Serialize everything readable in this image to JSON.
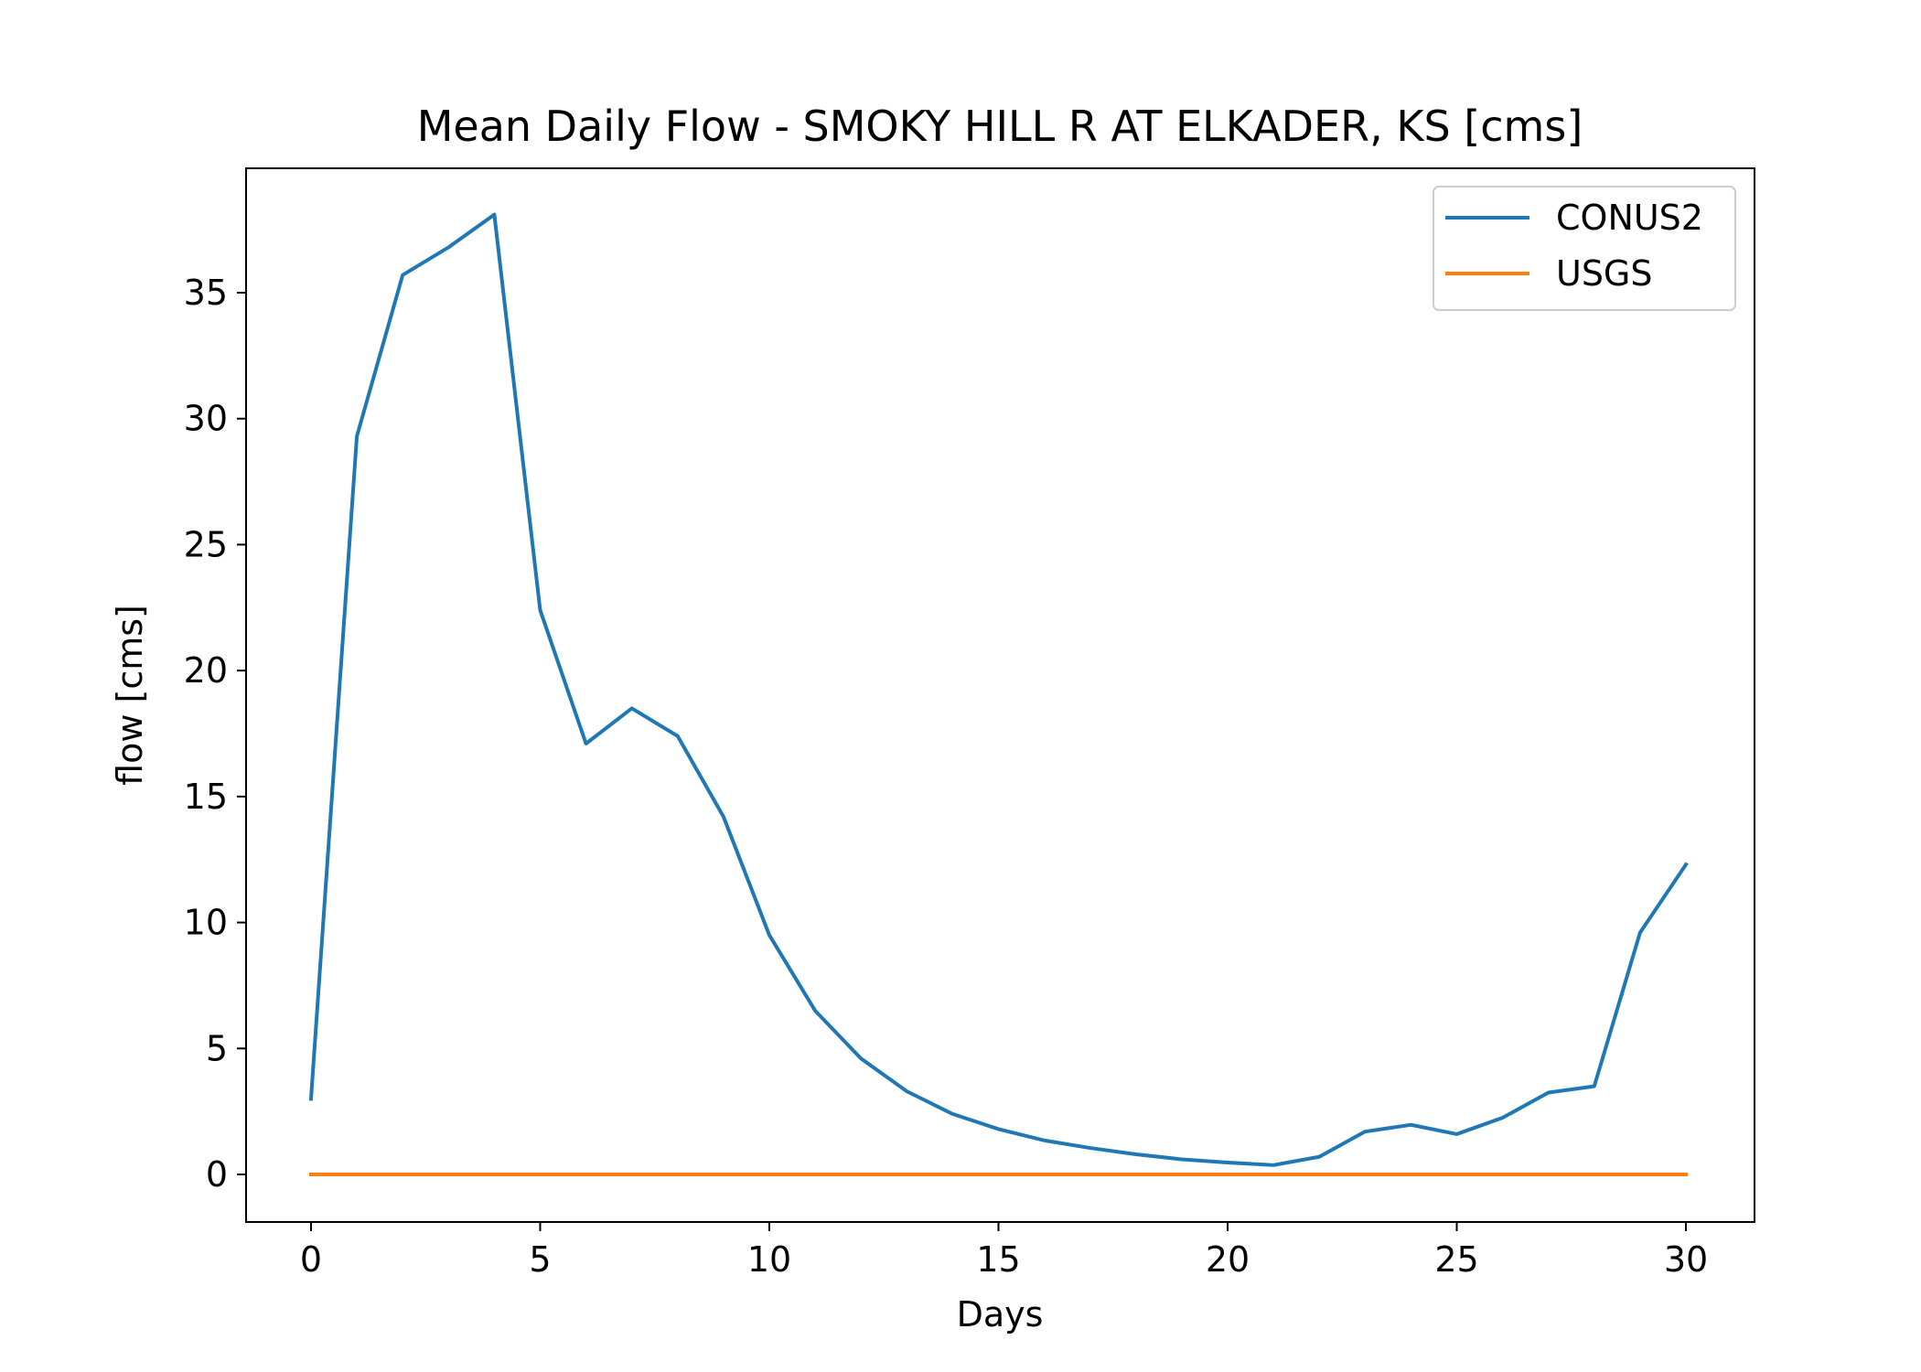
{
  "chart_data": {
    "type": "line",
    "title": "Mean Daily Flow - SMOKY HILL R AT ELKADER, KS [cms]",
    "xlabel": "Days",
    "ylabel": "flow [cms]",
    "xlim": [
      -1.5,
      31.5
    ],
    "ylim": [
      -1.9,
      39.9
    ],
    "xticks": [
      0,
      5,
      10,
      15,
      20,
      25,
      30
    ],
    "yticks": [
      0,
      5,
      10,
      15,
      20,
      25,
      30,
      35
    ],
    "grid": false,
    "legend_position": "top-right",
    "x": [
      0,
      1,
      2,
      3,
      4,
      5,
      6,
      7,
      8,
      9,
      10,
      11,
      12,
      13,
      14,
      15,
      16,
      17,
      18,
      19,
      20,
      21,
      22,
      23,
      24,
      25,
      26,
      27,
      28,
      29,
      30
    ],
    "series": [
      {
        "name": "CONUS2",
        "color": "#1f77b4",
        "values": [
          3.0,
          29.3,
          35.7,
          36.8,
          38.1,
          22.4,
          17.1,
          18.5,
          17.4,
          14.2,
          9.5,
          6.5,
          4.6,
          3.3,
          2.4,
          1.8,
          1.35,
          1.05,
          0.8,
          0.6,
          0.47,
          0.37,
          0.7,
          1.7,
          1.97,
          1.6,
          2.25,
          3.25,
          3.5,
          9.6,
          12.3
        ]
      },
      {
        "name": "USGS",
        "color": "#ff7f0e",
        "values": [
          0,
          0,
          0,
          0,
          0,
          0,
          0,
          0,
          0,
          0,
          0,
          0,
          0,
          0,
          0,
          0,
          0,
          0,
          0,
          0,
          0,
          0,
          0,
          0,
          0,
          0,
          0,
          0,
          0,
          0,
          0
        ]
      }
    ]
  }
}
